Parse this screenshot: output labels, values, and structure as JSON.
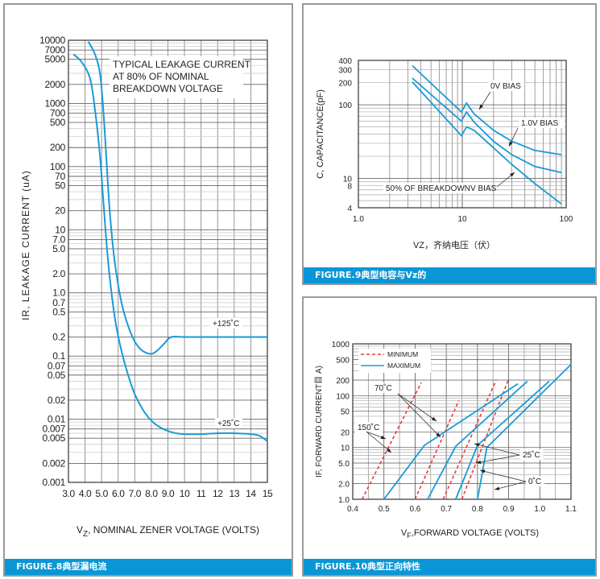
{
  "chart_data": [
    {
      "id": "fig8",
      "type": "line",
      "caption": "FIGURE.8典型漏电流",
      "title": "",
      "xlabel": "VZ, NOMINAL ZENER VOLTAGE (VOLTS)",
      "xlabel_main": "V",
      "xlabel_sub": "Z",
      "xlabel_rest": ", NOMINAL ZENER VOLTAGE (VOLTS)",
      "ylabel": "IR,  LEAKAGE CURRENT (uA)",
      "xscale": "linear",
      "yscale": "log",
      "xlim": [
        3,
        15
      ],
      "ylim": [
        0.001,
        10000
      ],
      "xticks": [
        3,
        4,
        5,
        6,
        7,
        8,
        9,
        10,
        11,
        12,
        13,
        14,
        15
      ],
      "xtick_labels": [
        "3.0",
        "4.0",
        "5.0",
        "6.0",
        "7.0",
        "8.0",
        "9.0",
        "10",
        "11",
        "12",
        "13",
        "14",
        "15"
      ],
      "yticks": [
        10000,
        7000,
        5000,
        2000,
        1000,
        700,
        500,
        200,
        100,
        70,
        50,
        20,
        10,
        7,
        5,
        2,
        1,
        0.7,
        0.5,
        0.2,
        0.1,
        0.07,
        0.05,
        0.02,
        0.01,
        0.007,
        0.005,
        0.002,
        0.001
      ],
      "ytick_labels": [
        "10000",
        "7000",
        "5000",
        "2000",
        "1000",
        "700",
        "500",
        "200",
        "100",
        "70",
        "50",
        "20",
        "10",
        "7.0",
        "5.0",
        "2.0",
        "1.0",
        "0.7",
        "0.5",
        "0.2",
        "0.1",
        "0.07",
        "0.05",
        "0.02",
        "0.01",
        "0.007",
        "0.005",
        "0.002",
        "0.001"
      ],
      "grid": true,
      "annotation": [
        "TYPICAL LEAKAGE CURRENT",
        "AT 80% OF NOMINAL",
        "BREAKDOWN VOLTAGE"
      ],
      "series": [
        {
          "name": "+125°C",
          "label": "+125˚C",
          "color": "#1a9ad6",
          "x": [
            4.2,
            4.6,
            4.9,
            5.1,
            5.3,
            5.5,
            5.8,
            6.2,
            6.6,
            7.0,
            7.4,
            7.8,
            8.1,
            8.4,
            8.8,
            9.2,
            10,
            12,
            14,
            15
          ],
          "y": [
            9500,
            6000,
            3000,
            800,
            120,
            18,
            3,
            0.7,
            0.3,
            0.17,
            0.125,
            0.11,
            0.11,
            0.125,
            0.16,
            0.2,
            0.2,
            0.2,
            0.2,
            0.2
          ]
        },
        {
          "name": "+25°C",
          "label": "+25˚C",
          "color": "#1a9ad6",
          "x": [
            3.3,
            3.8,
            4.3,
            4.6,
            4.9,
            5.1,
            5.4,
            5.8,
            6.2,
            6.6,
            7.0,
            7.5,
            8.0,
            8.5,
            9.0,
            9.5,
            10,
            11,
            12,
            13,
            14,
            14.5,
            15
          ],
          "y": [
            6000,
            4500,
            2500,
            800,
            150,
            30,
            3,
            0.4,
            0.12,
            0.05,
            0.025,
            0.014,
            0.0095,
            0.0075,
            0.0065,
            0.006,
            0.0058,
            0.0058,
            0.006,
            0.006,
            0.0058,
            0.0055,
            0.0045
          ]
        }
      ]
    },
    {
      "id": "fig9",
      "type": "line",
      "caption": "FIGURE.9典型电容与Vz的",
      "xlabel": "VZ，齐纳电压（伏）",
      "ylabel": "C, CAPACITANCE(pF)",
      "xscale": "log",
      "yscale": "log",
      "xlim": [
        1,
        100
      ],
      "ylim": [
        4,
        400
      ],
      "xticks": [
        1,
        10,
        100
      ],
      "xtick_labels": [
        "1.0",
        "10",
        "100"
      ],
      "yticks": [
        400,
        300,
        200,
        100,
        10,
        8,
        4
      ],
      "ytick_labels": [
        "400",
        "300",
        "200",
        "100",
        "10",
        "8",
        "4"
      ],
      "grid": true,
      "series": [
        {
          "name": "0V BIAS",
          "label": "0V BIAS",
          "color": "#1a9ad6",
          "x": [
            3.3,
            9.8,
            11,
            13,
            20,
            30,
            50,
            90
          ],
          "y": [
            340,
            80,
            105,
            75,
            45,
            32,
            24,
            21
          ]
        },
        {
          "name": "1.0V BIAS",
          "label": "1.0V BIAS",
          "color": "#1a9ad6",
          "x": [
            3.3,
            9.8,
            11,
            13,
            20,
            30,
            50,
            90
          ],
          "y": [
            230,
            60,
            80,
            58,
            32,
            21,
            14.5,
            12
          ]
        },
        {
          "name": "50% OF BREAKDOWNV BIAS",
          "label": "50% OF BREAKDOWNV BIAS",
          "color": "#1a9ad6",
          "x": [
            3.3,
            9.8,
            11,
            13,
            20,
            30,
            50,
            90
          ],
          "y": [
            205,
            38,
            50,
            45,
            26,
            15.5,
            8.5,
            4.5
          ]
        }
      ]
    },
    {
      "id": "fig10",
      "type": "line",
      "caption": "FIGURE.10典型正向特性",
      "xlabel": "VF,FORWARD VOLTAGE (VOLTS)",
      "xlabel_main": "V",
      "xlabel_sub": "F",
      "xlabel_rest": ",FORWARD VOLTAGE (VOLTS)",
      "ylabel": "IF, FORWARD CURRENT(μA)",
      "ylabel_display": "IF, FORWARD CURRENT目 A)",
      "xscale": "linear",
      "yscale": "log",
      "xlim": [
        0.4,
        1.1
      ],
      "ylim": [
        1,
        1000
      ],
      "xticks": [
        0.4,
        0.5,
        0.6,
        0.7,
        0.8,
        0.9,
        1.0,
        1.1
      ],
      "xtick_labels": [
        "0.4",
        "0.5",
        "0.6",
        "0.7",
        "0.8",
        "0.9",
        "1.0",
        "1.1"
      ],
      "yticks": [
        1000,
        500,
        200,
        100,
        50,
        20,
        10,
        5,
        2,
        1
      ],
      "ytick_labels": [
        "1000",
        "500",
        "200",
        "100",
        "50",
        "20",
        "10",
        "5.0",
        "2.0",
        "1.0"
      ],
      "grid": true,
      "legend": {
        "placement": "top-left",
        "entries": [
          {
            "label": "MINIMUM",
            "style": "dashed",
            "color": "#e83a3a"
          },
          {
            "label": "MAXIMUM",
            "style": "solid",
            "color": "#1a9ad6"
          }
        ]
      },
      "temperature_labels": [
        "150˚C",
        "70˚C",
        "25˚C",
        "0˚C"
      ],
      "series": [
        {
          "name": "150°C minimum",
          "style": "dashed",
          "color": "#e83a3a",
          "x": [
            0.43,
            0.62
          ],
          "y": [
            1,
            180
          ]
        },
        {
          "name": "70°C minimum",
          "style": "dashed",
          "color": "#e83a3a",
          "x": [
            0.6,
            0.74
          ],
          "y": [
            1,
            80
          ]
        },
        {
          "name": "25°C minimum",
          "style": "dashed",
          "color": "#e83a3a",
          "x": [
            0.69,
            0.86
          ],
          "y": [
            1,
            200
          ]
        },
        {
          "name": "0°C minimum",
          "style": "dashed",
          "color": "#e83a3a",
          "x": [
            0.75,
            0.9
          ],
          "y": [
            1,
            210
          ]
        },
        {
          "name": "150°C maximum",
          "style": "solid",
          "color": "#1a9ad6",
          "x": [
            0.5,
            0.63,
            0.93
          ],
          "y": [
            1,
            11,
            170
          ]
        },
        {
          "name": "70°C maximum",
          "style": "solid",
          "color": "#1a9ad6",
          "x": [
            0.64,
            0.73,
            0.96
          ],
          "y": [
            1,
            10.5,
            190
          ]
        },
        {
          "name": "25°C maximum",
          "style": "solid",
          "color": "#1a9ad6",
          "x": [
            0.73,
            0.8,
            1.03
          ],
          "y": [
            1,
            11,
            190
          ]
        },
        {
          "name": "0°C maximum",
          "style": "solid",
          "color": "#1a9ad6",
          "x": [
            0.8,
            0.83,
            1.1
          ],
          "y": [
            1,
            10,
            400
          ]
        }
      ]
    }
  ]
}
